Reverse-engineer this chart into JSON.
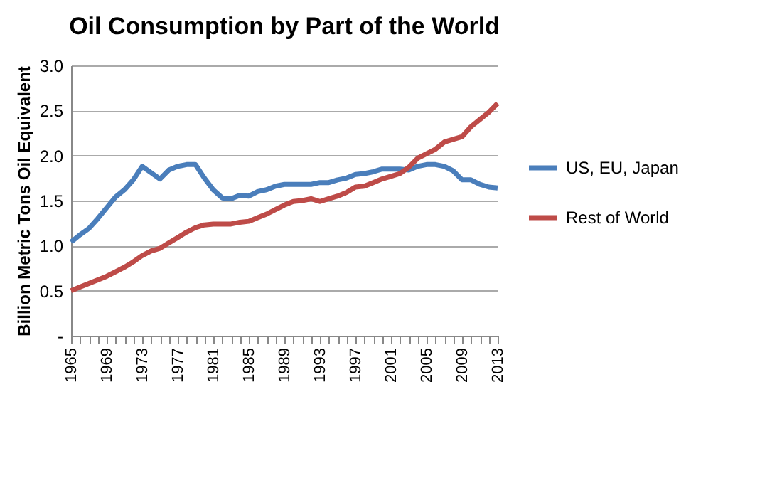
{
  "chart_data": {
    "type": "line",
    "title": "Oil Consumption by Part of the World",
    "ylabel": "Billion Metric Tons Oil Equivalent",
    "categories": [
      "1965",
      null,
      null,
      null,
      "1969",
      null,
      null,
      null,
      "1973",
      null,
      null,
      null,
      "1977",
      null,
      null,
      null,
      "1981",
      null,
      null,
      null,
      "1985",
      null,
      null,
      null,
      "1989",
      null,
      null,
      null,
      "1993",
      null,
      null,
      null,
      "1997",
      null,
      null,
      null,
      "2001",
      null,
      null,
      null,
      "2005",
      null,
      null,
      null,
      "2009",
      null,
      null,
      null,
      "2013"
    ],
    "series": [
      {
        "name": "US, EU, Japan",
        "color": "#4a7ebb",
        "values": [
          1.04,
          1.12,
          1.19,
          1.3,
          1.42,
          1.54,
          1.62,
          1.73,
          1.88,
          1.81,
          1.74,
          1.84,
          1.88,
          1.9,
          1.9,
          1.75,
          1.62,
          1.53,
          1.52,
          1.56,
          1.55,
          1.6,
          1.62,
          1.66,
          1.68,
          1.68,
          1.68,
          1.68,
          1.7,
          1.7,
          1.73,
          1.75,
          1.79,
          1.8,
          1.82,
          1.85,
          1.85,
          1.85,
          1.84,
          1.88,
          1.9,
          1.9,
          1.88,
          1.83,
          1.73,
          1.73,
          1.68,
          1.65,
          1.64
        ]
      },
      {
        "name": "Rest of World",
        "color": "#be4b48",
        "values": [
          0.5,
          0.54,
          0.58,
          0.62,
          0.66,
          0.71,
          0.76,
          0.82,
          0.89,
          0.94,
          0.97,
          1.03,
          1.09,
          1.15,
          1.2,
          1.23,
          1.24,
          1.24,
          1.24,
          1.26,
          1.27,
          1.31,
          1.35,
          1.4,
          1.45,
          1.49,
          1.5,
          1.52,
          1.49,
          1.52,
          1.55,
          1.59,
          1.65,
          1.66,
          1.7,
          1.74,
          1.77,
          1.8,
          1.87,
          1.97,
          2.02,
          2.07,
          2.15,
          2.18,
          2.21,
          2.32,
          2.4,
          2.48,
          2.58
        ]
      }
    ],
    "ylim": [
      0,
      3
    ],
    "yticks": [
      {
        "value": 0,
        "label": "-"
      },
      0.5,
      {
        "value": 1,
        "label": "1.0"
      },
      1.5,
      {
        "value": 2,
        "label": "2.0"
      },
      2.5,
      {
        "value": 3,
        "label": "3.0"
      }
    ],
    "grid": "y",
    "legend": "right",
    "line_style": "solid",
    "marker": "none"
  }
}
